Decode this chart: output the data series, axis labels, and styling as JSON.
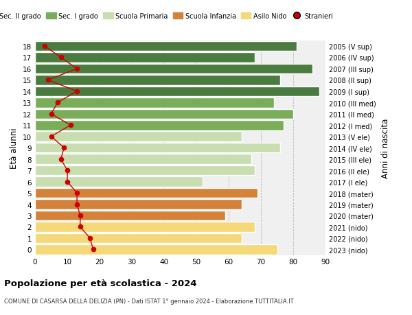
{
  "ages": [
    18,
    17,
    16,
    15,
    14,
    13,
    12,
    11,
    10,
    9,
    8,
    7,
    6,
    5,
    4,
    3,
    2,
    1,
    0
  ],
  "years_labels": [
    "2005 (V sup)",
    "2006 (IV sup)",
    "2007 (III sup)",
    "2008 (II sup)",
    "2009 (I sup)",
    "2010 (III med)",
    "2011 (II med)",
    "2012 (I med)",
    "2013 (V ele)",
    "2014 (IV ele)",
    "2015 (III ele)",
    "2016 (II ele)",
    "2017 (I ele)",
    "2018 (mater)",
    "2019 (mater)",
    "2020 (mater)",
    "2021 (nido)",
    "2022 (nido)",
    "2023 (nido)"
  ],
  "bar_values": [
    81,
    68,
    86,
    76,
    88,
    74,
    80,
    77,
    64,
    76,
    67,
    68,
    52,
    69,
    64,
    59,
    68,
    64,
    75
  ],
  "stranieri": [
    3,
    8,
    13,
    4,
    13,
    7,
    5,
    11,
    5,
    9,
    8,
    10,
    10,
    13,
    13,
    14,
    14,
    17,
    18
  ],
  "bar_colors": [
    "#4a7c3f",
    "#4a7c3f",
    "#4a7c3f",
    "#4a7c3f",
    "#4a7c3f",
    "#7aad5a",
    "#7aad5a",
    "#7aad5a",
    "#c8ddb0",
    "#c8ddb0",
    "#c8ddb0",
    "#c8ddb0",
    "#c8ddb0",
    "#d4813a",
    "#d4813a",
    "#d4813a",
    "#f5d878",
    "#f5d878",
    "#f5d878"
  ],
  "legend_labels": [
    "Sec. II grado",
    "Sec. I grado",
    "Scuola Primaria",
    "Scuola Infanzia",
    "Asilo Nido",
    "Stranieri"
  ],
  "legend_colors": [
    "#4a7c3f",
    "#7aad5a",
    "#c8ddb0",
    "#d4813a",
    "#f5d878",
    "#cc0000"
  ],
  "stranieri_color": "#cc0000",
  "ylabel": "Età alunni",
  "ylabel_right": "Anni di nascita",
  "title": "Popolazione per età scolastica - 2024",
  "subtitle": "COMUNE DI CASARSA DELLA DELIZIA (PN) - Dati ISTAT 1° gennaio 2024 - Elaborazione TUTTITALIA.IT",
  "xlim": [
    0,
    90
  ],
  "xticks": [
    0,
    10,
    20,
    30,
    40,
    50,
    60,
    70,
    80,
    90
  ],
  "bg_color": "#ffffff",
  "plot_bg_color": "#f0f0f0"
}
